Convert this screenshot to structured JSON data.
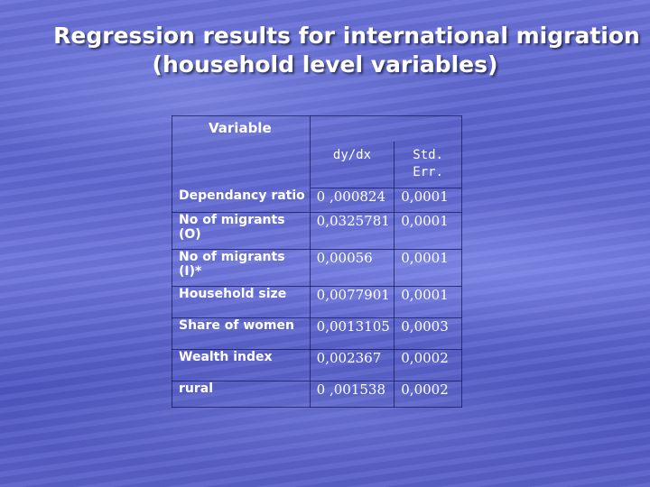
{
  "slide": {
    "title_line1": "Regression results for international migration",
    "title_line2": "(household level variables)"
  },
  "table": {
    "header_variable": "Variable",
    "header_dydx": "dy/dx",
    "header_stderr_line1": "Std.",
    "header_stderr_line2": "Err.",
    "rows": [
      {
        "variable": "Dependancy ratio",
        "dydx": "0 ,000824",
        "stderr": "0,0001"
      },
      {
        "variable": "No of migrants (O)",
        "dydx": "0,0325781",
        "stderr": "0,0001"
      },
      {
        "variable": "No of migrants (I)*",
        "dydx": "0,00056",
        "stderr": "0,0001"
      },
      {
        "variable": "Household size",
        "dydx": "0,0077901",
        "stderr": "0,0001"
      },
      {
        "variable": "Share of women",
        "dydx": "0,0013105",
        "stderr": "0,0003"
      },
      {
        "variable": "Wealth index",
        "dydx": "0,002367",
        "stderr": "0,0002"
      },
      {
        "variable": "rural",
        "dydx": "0 ,001538",
        "stderr": "0,0002"
      }
    ]
  }
}
